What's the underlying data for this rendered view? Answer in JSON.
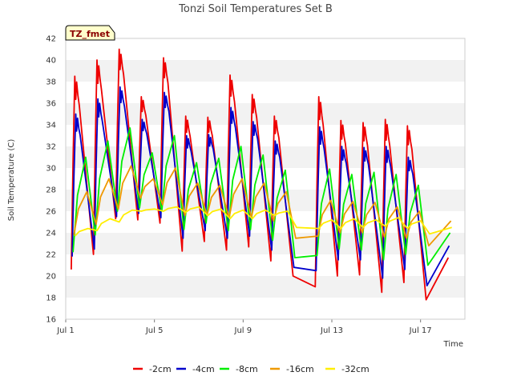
{
  "chart_data": {
    "type": "line",
    "title": "Tonzi Soil Temperatures Set B",
    "xlabel": "Time",
    "ylabel": "Soil Temperature (C)",
    "badge": "TZ_fmet",
    "xlim": [
      1.0,
      19.0
    ],
    "ylim": [
      16,
      42
    ],
    "yticks": [
      16,
      18,
      20,
      22,
      24,
      26,
      28,
      30,
      32,
      34,
      36,
      38,
      40,
      42
    ],
    "xticks": [
      {
        "v": 1,
        "label": "Jul 1"
      },
      {
        "v": 5,
        "label": "Jul 5"
      },
      {
        "v": 9,
        "label": "Jul 9"
      },
      {
        "v": 13,
        "label": "Jul 13"
      },
      {
        "v": 17,
        "label": "Jul 17"
      }
    ],
    "grid": "horizontal-bands",
    "legend": "bottom",
    "series": [
      {
        "name": "-2cm",
        "color": "#ee0000",
        "min": [
          20.6,
          22.0,
          25.3,
          25.2,
          24.9,
          22.3,
          23.2,
          22.4,
          22.7,
          21.4,
          20.0,
          19.0,
          20.0,
          20.1,
          18.5,
          19.4,
          17.8,
          21.7
        ],
        "max": [
          38.5,
          40.0,
          41.0,
          36.6,
          40.2,
          34.8,
          34.7,
          38.6,
          36.8,
          34.8,
          34.3,
          36.6,
          34.4,
          34.2,
          34.5,
          33.9,
          33.8
        ]
      },
      {
        "name": "-4cm",
        "color": "#0000cc",
        "min": [
          21.8,
          22.5,
          25.5,
          25.8,
          25.4,
          23.5,
          24.2,
          23.5,
          23.7,
          22.4,
          20.8,
          20.5,
          21.5,
          21.5,
          19.8,
          20.6,
          19.1,
          22.8
        ],
        "max": [
          35.0,
          36.4,
          37.5,
          34.5,
          37.0,
          33.0,
          33.1,
          35.6,
          34.3,
          32.5,
          32.1,
          33.8,
          32.0,
          31.9,
          32.0,
          31.0,
          30.9
        ]
      },
      {
        "name": "-8cm",
        "color": "#00ee00",
        "min": [
          22.2,
          23.8,
          26.0,
          26.3,
          26.0,
          24.3,
          24.9,
          24.2,
          24.3,
          23.3,
          21.7,
          21.9,
          22.5,
          22.4,
          21.5,
          22.0,
          21.0,
          24.0
        ],
        "max": [
          31.0,
          32.5,
          33.7,
          31.4,
          33.0,
          30.5,
          30.9,
          32.0,
          31.2,
          29.8,
          28.8,
          29.9,
          29.4,
          29.6,
          29.4,
          28.4,
          27.9
        ]
      },
      {
        "name": "-16cm",
        "color": "#ee9900",
        "min": [
          23.8,
          24.8,
          26.2,
          27.2,
          26.6,
          25.6,
          25.6,
          25.4,
          25.4,
          25.1,
          23.5,
          23.7,
          24.0,
          24.0,
          23.6,
          23.5,
          22.8,
          25.1
        ],
        "max": [
          27.8,
          29.0,
          30.2,
          29.0,
          30.0,
          28.6,
          28.4,
          29.0,
          28.6,
          27.8,
          27.0,
          27.0,
          26.9,
          26.8,
          26.4,
          26.0,
          26.2
        ]
      },
      {
        "name": "-32cm",
        "color": "#ffee00",
        "min": [
          23.7,
          24.2,
          25.0,
          26.0,
          26.0,
          25.9,
          25.6,
          25.3,
          25.3,
          25.6,
          24.5,
          24.4,
          24.4,
          24.5,
          24.6,
          24.4,
          23.9,
          24.5
        ],
        "max": [
          24.4,
          25.3,
          26.1,
          26.2,
          26.4,
          26.4,
          26.2,
          26.1,
          26.1,
          26.0,
          25.3,
          25.2,
          25.3,
          25.2,
          25.4,
          25.1,
          24.8
        ]
      }
    ]
  }
}
